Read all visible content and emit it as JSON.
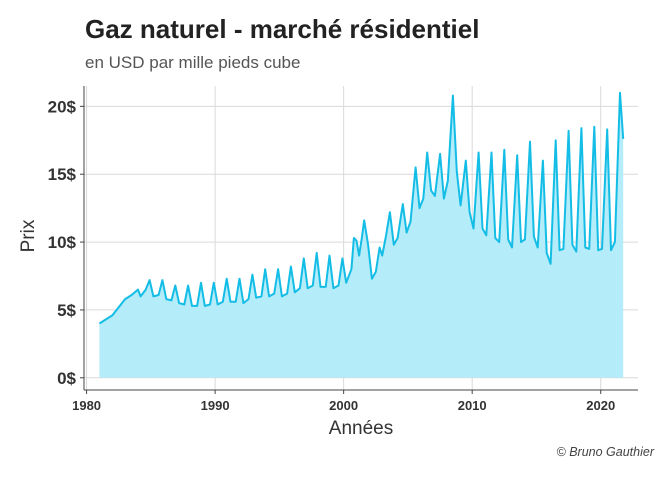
{
  "title": "Gaz naturel - marché résidentiel",
  "subtitle": "en USD par mille pieds cube",
  "caption": "© Bruno Gauthier",
  "colors": {
    "line": "#14bde6",
    "area": "#b4ecfa",
    "grid": "#d9d9d9",
    "axis": "#444444"
  },
  "chart_data": {
    "type": "area",
    "title": "Gaz naturel - marché résidentiel",
    "subtitle": "en USD par mille pieds cube",
    "xlabel": "Années",
    "ylabel": "Prix",
    "xlim": [
      1979.8,
      2022.9
    ],
    "ylim": [
      -0.9,
      21.5
    ],
    "x_ticks": [
      1980,
      1990,
      2000,
      2010,
      2020
    ],
    "y_ticks": [
      0,
      5,
      10,
      15,
      20
    ],
    "y_tick_labels": [
      "0$",
      "5$",
      "10$",
      "15$",
      "20$"
    ],
    "grid": true,
    "series": [
      {
        "values": [
          [
            1981.0,
            4.0
          ],
          [
            1981.5,
            4.3
          ],
          [
            1982.0,
            4.6
          ],
          [
            1982.5,
            5.2
          ],
          [
            1983.0,
            5.8
          ],
          [
            1983.5,
            6.1
          ],
          [
            1984.0,
            6.5
          ],
          [
            1984.2,
            6.0
          ],
          [
            1984.6,
            6.5
          ],
          [
            1984.9,
            7.2
          ],
          [
            1985.2,
            6.0
          ],
          [
            1985.6,
            6.1
          ],
          [
            1985.9,
            7.2
          ],
          [
            1986.2,
            5.8
          ],
          [
            1986.6,
            5.7
          ],
          [
            1986.9,
            6.8
          ],
          [
            1987.2,
            5.5
          ],
          [
            1987.6,
            5.4
          ],
          [
            1987.9,
            6.8
          ],
          [
            1988.2,
            5.3
          ],
          [
            1988.6,
            5.3
          ],
          [
            1988.9,
            7.0
          ],
          [
            1989.2,
            5.3
          ],
          [
            1989.6,
            5.4
          ],
          [
            1989.9,
            7.0
          ],
          [
            1990.2,
            5.4
          ],
          [
            1990.6,
            5.6
          ],
          [
            1990.9,
            7.3
          ],
          [
            1991.2,
            5.6
          ],
          [
            1991.6,
            5.6
          ],
          [
            1991.9,
            7.3
          ],
          [
            1992.2,
            5.5
          ],
          [
            1992.6,
            5.8
          ],
          [
            1992.9,
            7.6
          ],
          [
            1993.2,
            5.9
          ],
          [
            1993.6,
            6.0
          ],
          [
            1993.9,
            8.0
          ],
          [
            1994.2,
            6.0
          ],
          [
            1994.6,
            6.2
          ],
          [
            1994.9,
            8.0
          ],
          [
            1995.2,
            6.0
          ],
          [
            1995.6,
            6.2
          ],
          [
            1995.9,
            8.2
          ],
          [
            1996.2,
            6.3
          ],
          [
            1996.6,
            6.6
          ],
          [
            1996.9,
            8.8
          ],
          [
            1997.2,
            6.6
          ],
          [
            1997.6,
            6.8
          ],
          [
            1997.9,
            9.2
          ],
          [
            1998.2,
            6.7
          ],
          [
            1998.6,
            6.7
          ],
          [
            1998.9,
            9.0
          ],
          [
            1999.2,
            6.6
          ],
          [
            1999.6,
            6.8
          ],
          [
            1999.9,
            8.8
          ],
          [
            2000.2,
            7.0
          ],
          [
            2000.6,
            8.0
          ],
          [
            2000.8,
            10.3
          ],
          [
            2001.0,
            10.1
          ],
          [
            2001.2,
            9.0
          ],
          [
            2001.4,
            10.2
          ],
          [
            2001.6,
            11.6
          ],
          [
            2001.9,
            9.8
          ],
          [
            2002.2,
            7.3
          ],
          [
            2002.5,
            7.8
          ],
          [
            2002.8,
            9.6
          ],
          [
            2003.0,
            9.0
          ],
          [
            2003.3,
            10.5
          ],
          [
            2003.6,
            12.2
          ],
          [
            2003.9,
            9.8
          ],
          [
            2004.2,
            10.3
          ],
          [
            2004.6,
            12.8
          ],
          [
            2004.9,
            10.7
          ],
          [
            2005.2,
            11.5
          ],
          [
            2005.6,
            15.5
          ],
          [
            2005.9,
            12.5
          ],
          [
            2006.2,
            13.2
          ],
          [
            2006.5,
            16.6
          ],
          [
            2006.8,
            13.8
          ],
          [
            2007.1,
            13.4
          ],
          [
            2007.5,
            16.5
          ],
          [
            2007.8,
            13.2
          ],
          [
            2008.1,
            14.5
          ],
          [
            2008.5,
            20.8
          ],
          [
            2008.8,
            15.2
          ],
          [
            2009.1,
            12.7
          ],
          [
            2009.5,
            16.0
          ],
          [
            2009.8,
            12.2
          ],
          [
            2010.1,
            11.0
          ],
          [
            2010.5,
            16.6
          ],
          [
            2010.8,
            11.0
          ],
          [
            2011.1,
            10.5
          ],
          [
            2011.5,
            16.6
          ],
          [
            2011.8,
            10.3
          ],
          [
            2012.1,
            10.0
          ],
          [
            2012.5,
            16.8
          ],
          [
            2012.8,
            10.2
          ],
          [
            2013.1,
            9.6
          ],
          [
            2013.5,
            16.4
          ],
          [
            2013.8,
            10.0
          ],
          [
            2014.1,
            10.2
          ],
          [
            2014.5,
            17.4
          ],
          [
            2014.8,
            10.4
          ],
          [
            2015.1,
            9.6
          ],
          [
            2015.5,
            16.0
          ],
          [
            2015.8,
            9.2
          ],
          [
            2016.1,
            8.4
          ],
          [
            2016.5,
            17.5
          ],
          [
            2016.8,
            9.4
          ],
          [
            2017.1,
            9.5
          ],
          [
            2017.5,
            18.2
          ],
          [
            2017.8,
            9.8
          ],
          [
            2018.1,
            9.3
          ],
          [
            2018.5,
            18.4
          ],
          [
            2018.8,
            9.6
          ],
          [
            2019.1,
            9.5
          ],
          [
            2019.5,
            18.5
          ],
          [
            2019.8,
            9.4
          ],
          [
            2020.1,
            9.5
          ],
          [
            2020.5,
            18.3
          ],
          [
            2020.8,
            9.4
          ],
          [
            2021.1,
            10.0
          ],
          [
            2021.5,
            21.0
          ],
          [
            2021.75,
            17.6
          ]
        ]
      }
    ]
  }
}
